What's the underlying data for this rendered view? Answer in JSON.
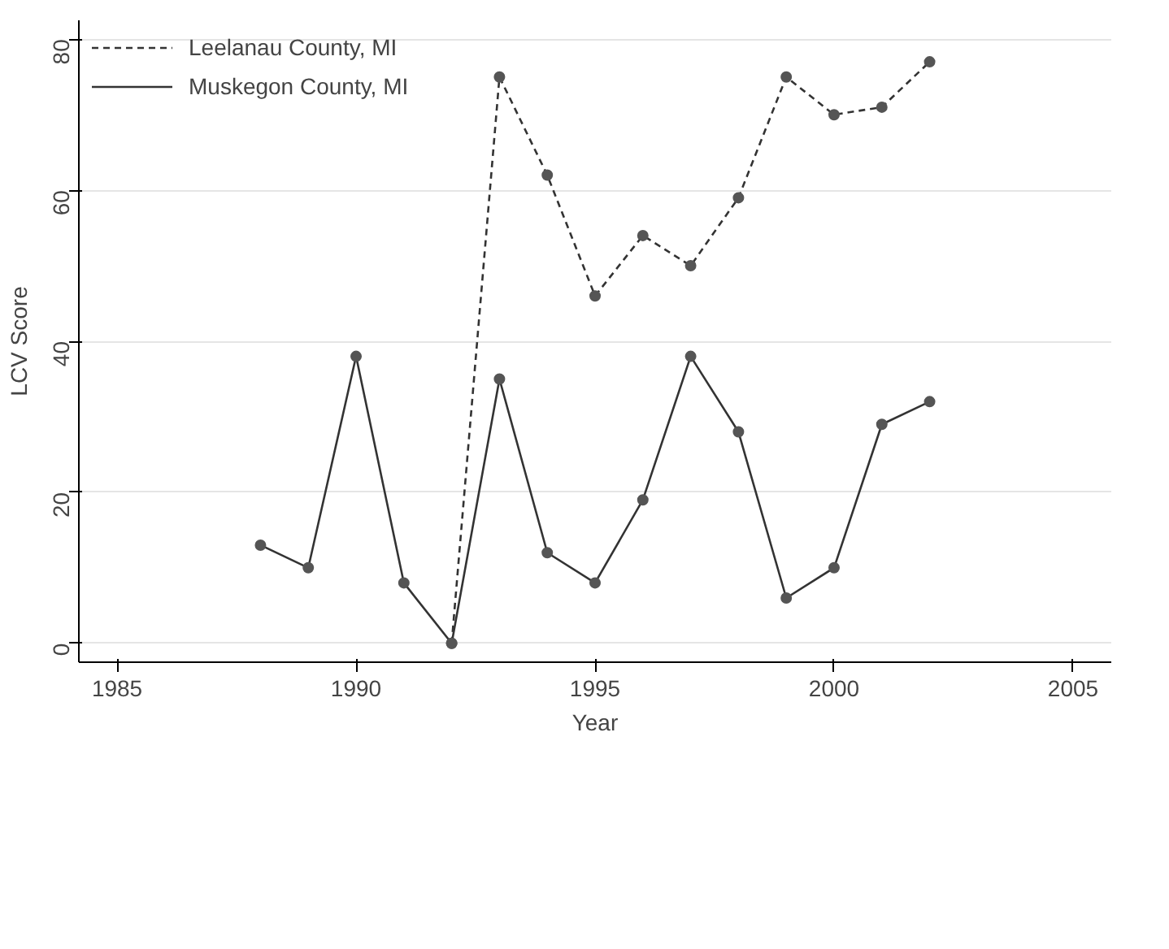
{
  "chart_data": {
    "type": "line",
    "xlabel": "Year",
    "ylabel": "LCV Score",
    "x": [
      1988,
      1989,
      1990,
      1991,
      1992,
      1993,
      1994,
      1995,
      1996,
      1997,
      1998,
      1999,
      2000,
      2001,
      2002
    ],
    "series": [
      {
        "name": "Leelanau County, MI",
        "color": "#333333",
        "line_style": "dashed",
        "values": [
          null,
          null,
          null,
          null,
          0,
          75,
          62,
          46,
          54,
          50,
          59,
          75,
          70,
          71,
          77
        ]
      },
      {
        "name": "Muskegon County, MI",
        "color": "#333333",
        "line_style": "solid",
        "values": [
          13,
          10,
          38,
          8,
          0,
          35,
          12,
          8,
          19,
          38,
          28,
          6,
          10,
          29,
          32
        ]
      }
    ],
    "xlim": [
      1984.2,
      2005.8
    ],
    "ylim": [
      -2.5,
      82.5
    ],
    "xticks": [
      1985,
      1990,
      1995,
      2000,
      2005
    ],
    "yticks": [
      0,
      20,
      40,
      60,
      80
    ],
    "grid": "y",
    "legend": "top left",
    "marker": "circle"
  }
}
